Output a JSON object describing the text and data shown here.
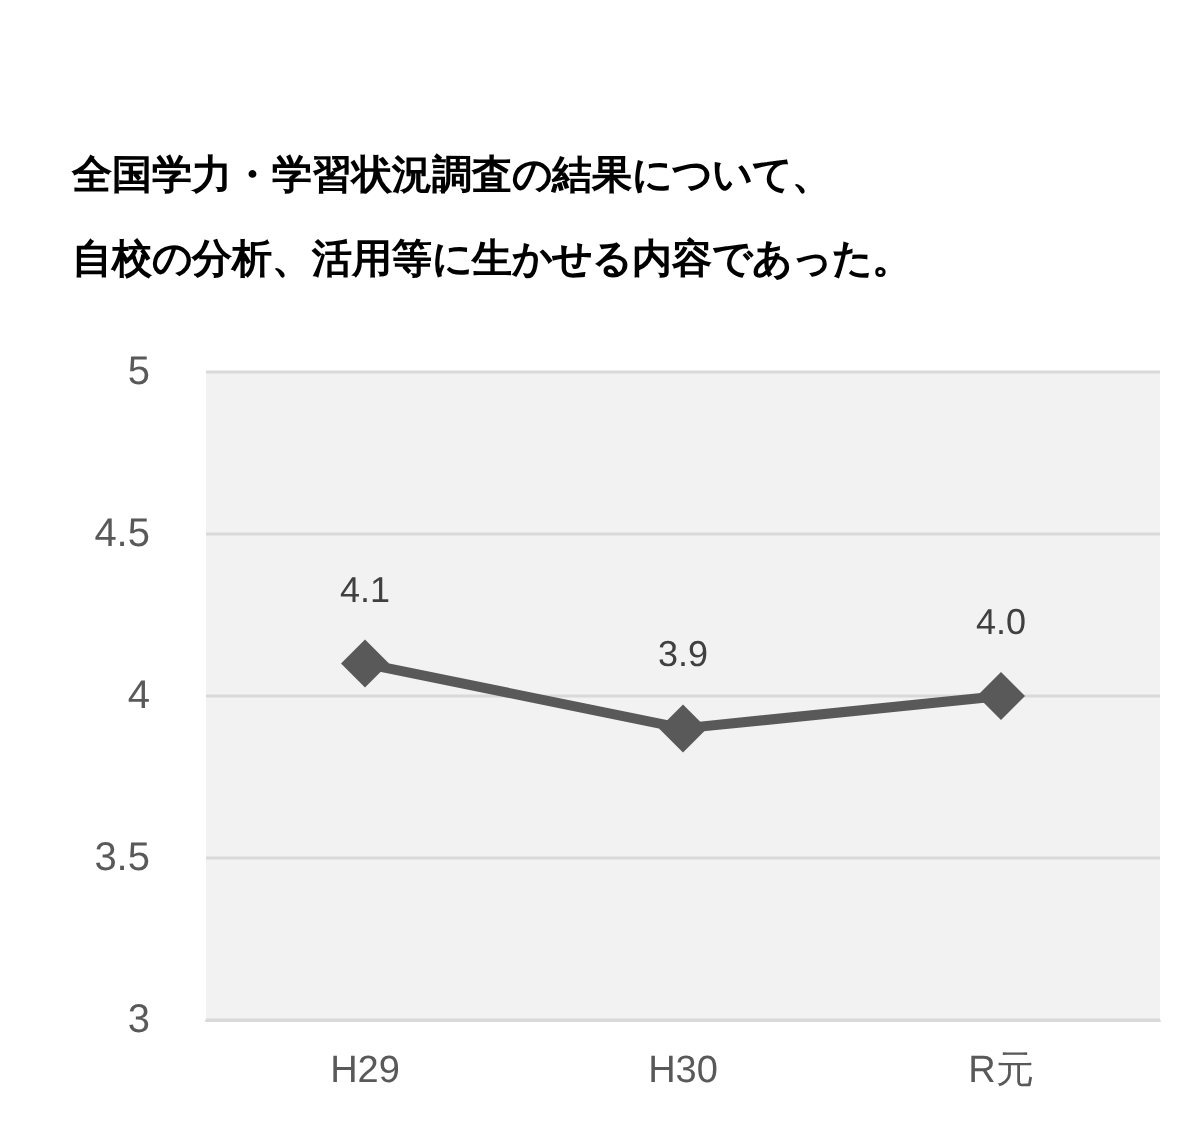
{
  "chart_data": {
    "type": "line",
    "title": "全国学力・学習状況調査の結果について、自校の分析、活用等に生かせる内容であった。",
    "categories": [
      "H29",
      "H30",
      "R元"
    ],
    "series": [
      {
        "color": "#595959",
        "values": [
          4.1,
          3.9,
          4.0
        ],
        "value_labels": [
          "4.1",
          "3.9",
          "4.0"
        ]
      }
    ],
    "ylim": [
      3,
      5
    ],
    "yticks": [
      3,
      3.5,
      4,
      4.5,
      5
    ],
    "grid": "y",
    "marker": "diamond",
    "line_style": "solid"
  }
}
